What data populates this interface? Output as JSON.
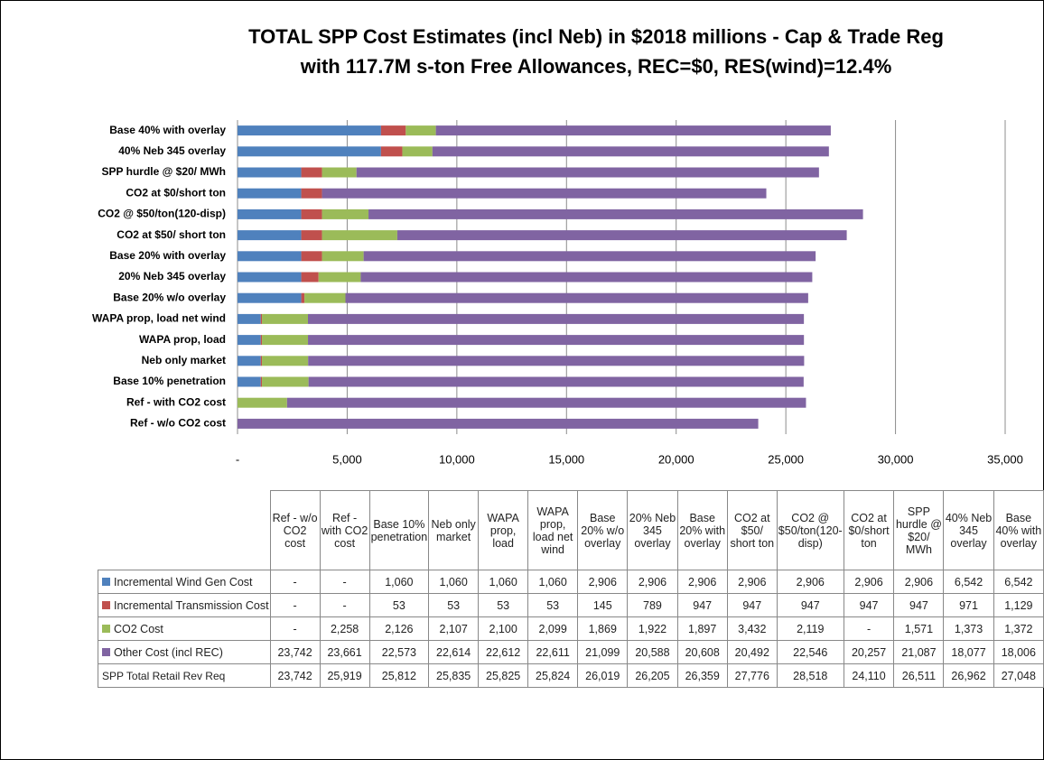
{
  "chart_data": {
    "type": "stacked_barh",
    "title": [
      "TOTAL SPP Cost Estimates (incl Neb) in $2018 millions - Cap & Trade Reg",
      "with 117.7M s-ton Free Allowances, REC=$0, RES(wind)=12.4%"
    ],
    "categories": [
      "Ref - w/o CO2 cost",
      "Ref - with CO2 cost",
      "Base 10% penetration",
      "Neb only market",
      "WAPA prop, load",
      "WAPA prop, load net wind",
      "Base 20% w/o overlay",
      "20% Neb 345 overlay",
      "Base 20% with overlay",
      "CO2 at $50/ short ton",
      "CO2 @ $50/ton(120-disp)",
      "CO2 at $0/short ton",
      "SPP hurdle @ $20/ MWh",
      "40% Neb 345 overlay",
      "Base 40% with overlay"
    ],
    "series": [
      {
        "name": "Incremental Wind Gen Cost",
        "color": "#4f81bd",
        "values": [
          0,
          0,
          1060,
          1060,
          1060,
          1060,
          2906,
          2906,
          2906,
          2906,
          2906,
          2906,
          2906,
          6542,
          6542
        ],
        "value_labels": [
          "-",
          "-",
          "1,060",
          "1,060",
          "1,060",
          "1,060",
          "2,906",
          "2,906",
          "2,906",
          "2,906",
          "2,906",
          "2,906",
          "2,906",
          "6,542",
          "6,542"
        ]
      },
      {
        "name": "Incremental Transmission Cost",
        "color": "#c0504d",
        "values": [
          0,
          0,
          53,
          53,
          53,
          53,
          145,
          789,
          947,
          947,
          947,
          947,
          947,
          971,
          1129
        ],
        "value_labels": [
          "-",
          "-",
          "53",
          "53",
          "53",
          "53",
          "145",
          "789",
          "947",
          "947",
          "947",
          "947",
          "947",
          "971",
          "1,129"
        ]
      },
      {
        "name": "CO2 Cost",
        "color": "#9bbb59",
        "values": [
          0,
          2258,
          2126,
          2107,
          2100,
          2099,
          1869,
          1922,
          1897,
          3432,
          2119,
          0,
          1571,
          1373,
          1372
        ],
        "value_labels": [
          "-",
          "2,258",
          "2,126",
          "2,107",
          "2,100",
          "2,099",
          "1,869",
          "1,922",
          "1,897",
          "3,432",
          "2,119",
          "-",
          "1,571",
          "1,373",
          "1,372"
        ]
      },
      {
        "name": "Other Cost (incl REC)",
        "color": "#8064a2",
        "values": [
          23742,
          23661,
          22573,
          22614,
          22612,
          22611,
          21099,
          20588,
          20608,
          20492,
          22546,
          20257,
          21087,
          18077,
          18006
        ],
        "value_labels": [
          "23,742",
          "23,661",
          "22,573",
          "22,614",
          "22,612",
          "22,611",
          "21,099",
          "20,588",
          "20,608",
          "20,492",
          "22,546",
          "20,257",
          "21,087",
          "18,077",
          "18,006"
        ]
      }
    ],
    "total_row": {
      "name": "SPP Total Retail Rev Req",
      "values": [
        "23,742",
        "25,919",
        "25,812",
        "25,835",
        "25,825",
        "25,824",
        "26,019",
        "26,205",
        "26,359",
        "27,776",
        "28,518",
        "24,110",
        "26,511",
        "26,962",
        "27,048"
      ]
    },
    "xlim": [
      0,
      35000
    ],
    "xticks": [
      {
        "value": 0,
        "label": "-"
      },
      {
        "value": 5000,
        "label": "5,000"
      },
      {
        "value": 10000,
        "label": "10,000"
      },
      {
        "value": 15000,
        "label": "15,000"
      },
      {
        "value": 20000,
        "label": "20,000"
      },
      {
        "value": 25000,
        "label": "25,000"
      },
      {
        "value": 30000,
        "label": "30,000"
      },
      {
        "value": 35000,
        "label": "35,000"
      }
    ],
    "grid": true
  }
}
